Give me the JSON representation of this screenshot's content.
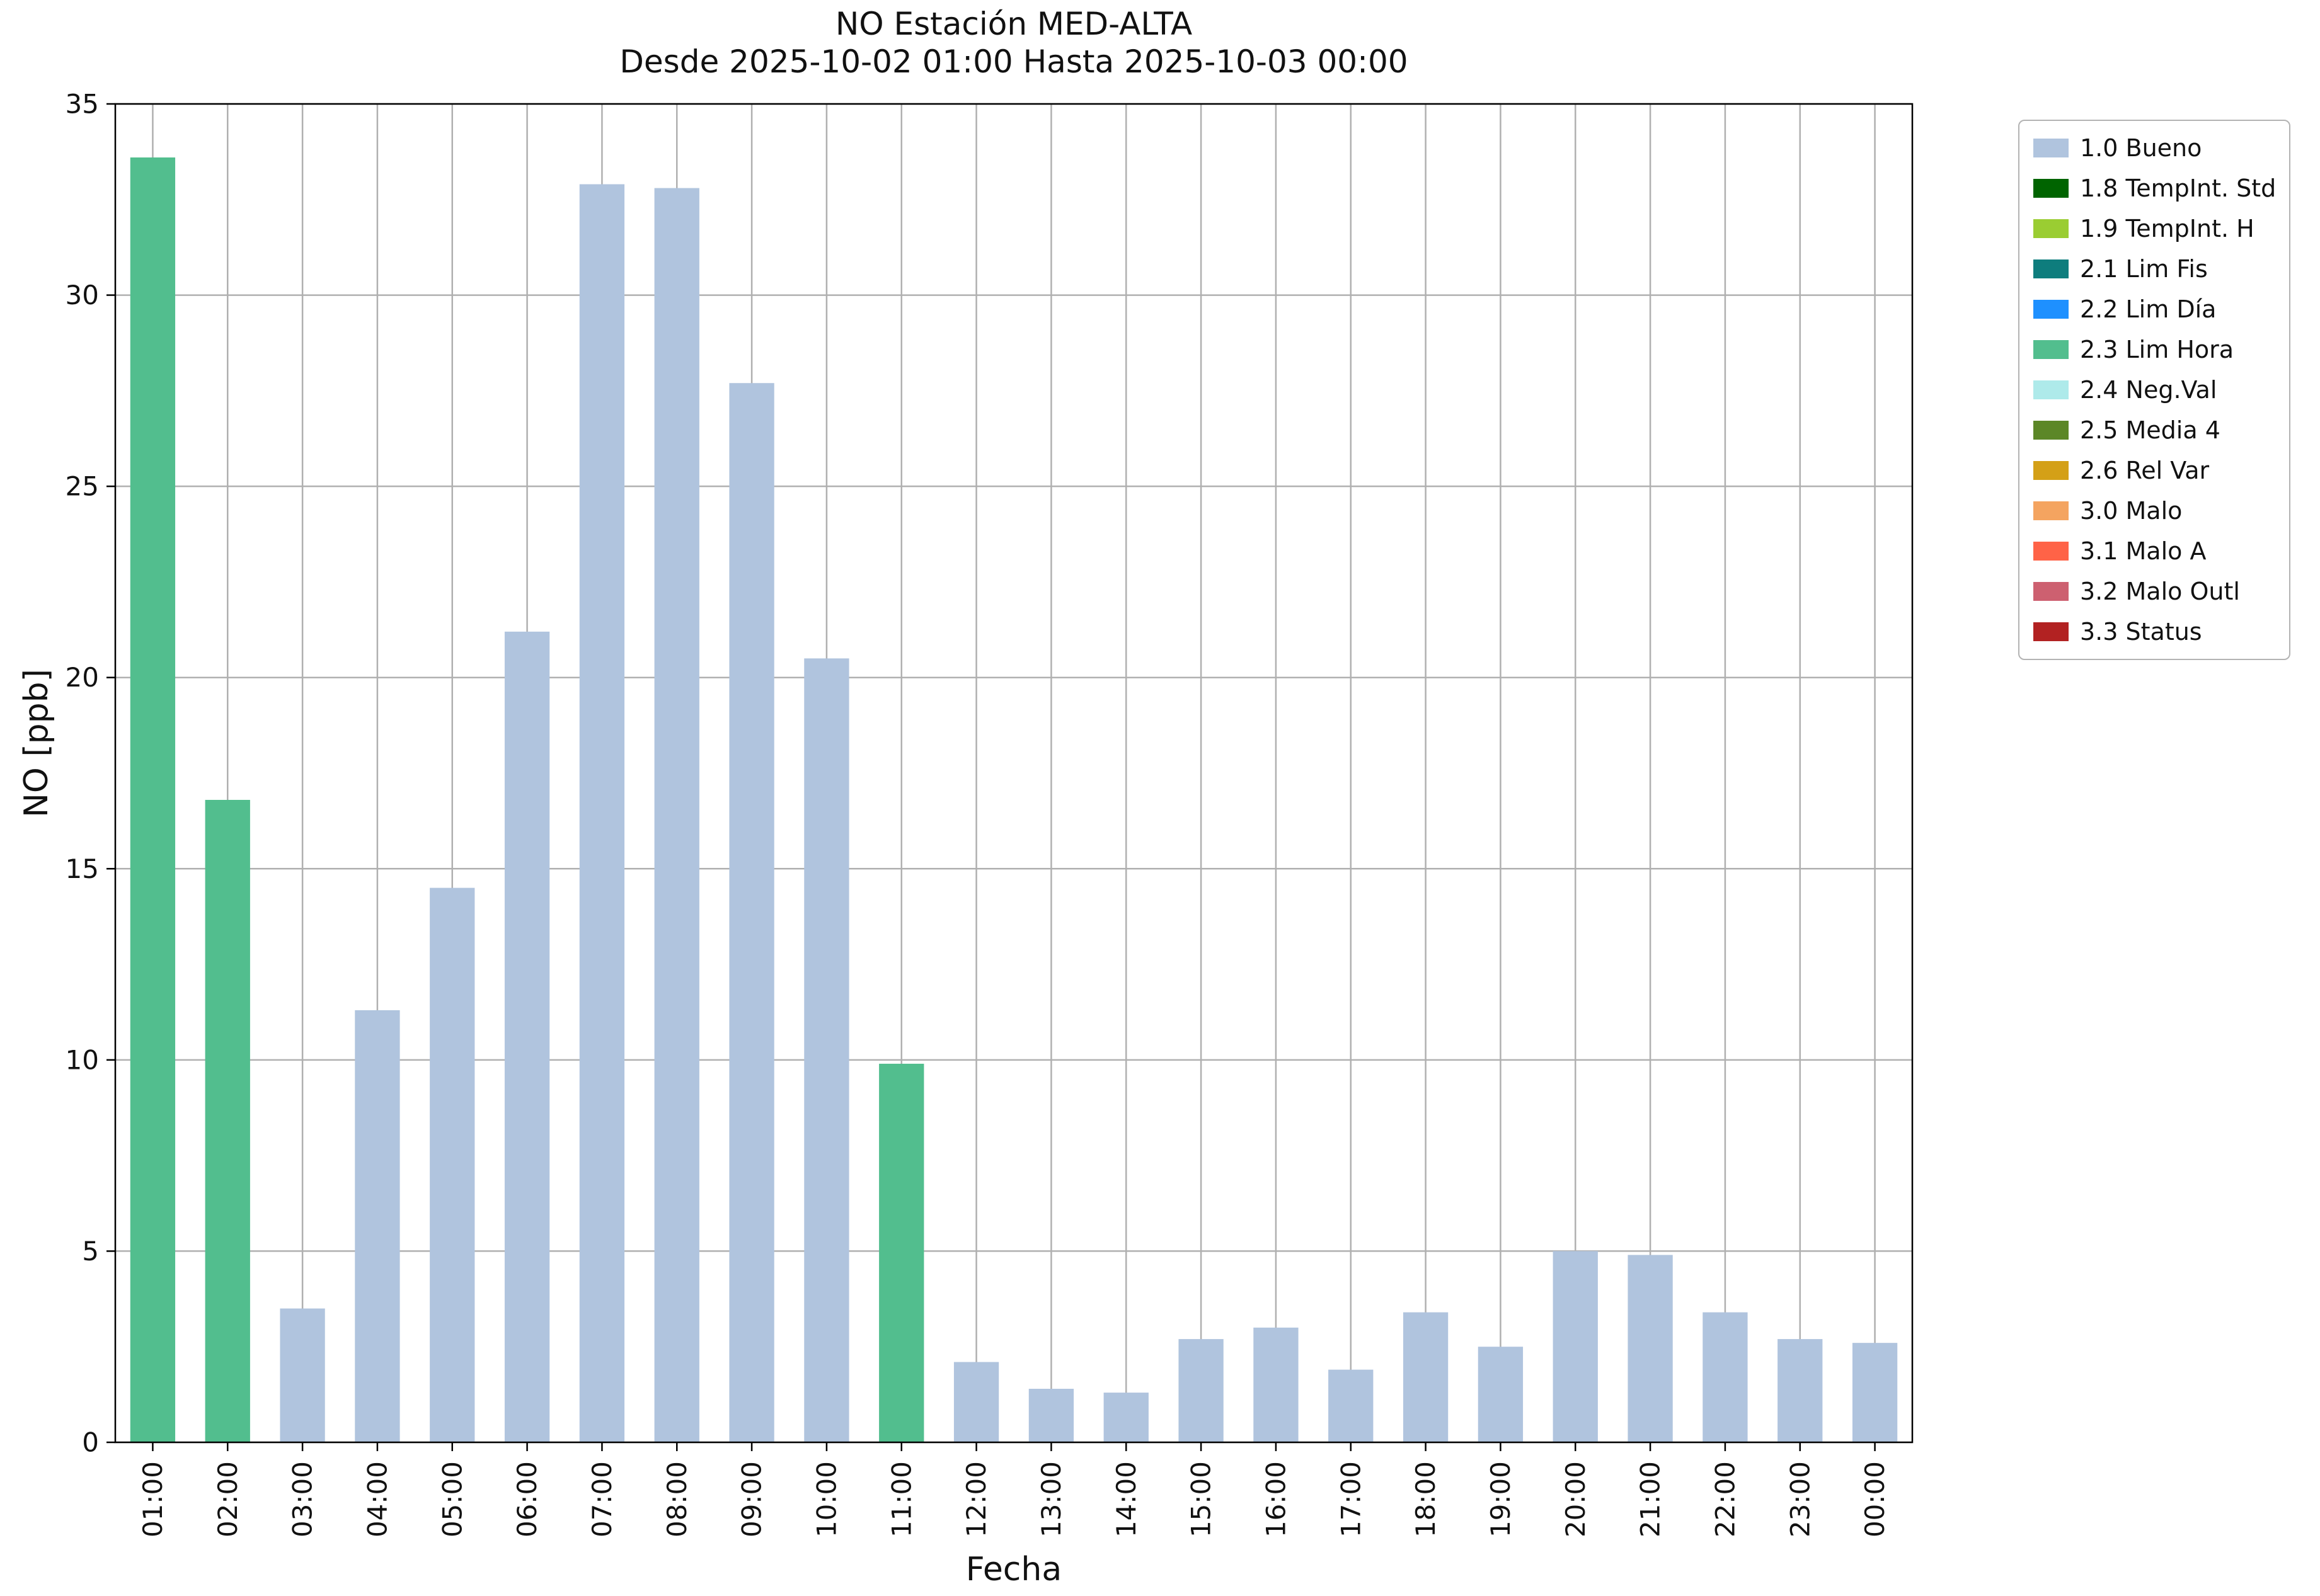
{
  "chart_data": {
    "type": "bar",
    "title": "NO Estación MED-ALTA",
    "subtitle": "Desde 2025-10-02 01:00 Hasta 2025-10-03 00:00",
    "xlabel": "Fecha",
    "ylabel": "NO [ppb]",
    "ylim": [
      0,
      35
    ],
    "yticks": [
      0,
      5,
      10,
      15,
      20,
      25,
      30,
      35
    ],
    "grid": true,
    "legend_position": "outside-right-top",
    "categories": [
      "01:00",
      "02:00",
      "03:00",
      "04:00",
      "05:00",
      "06:00",
      "07:00",
      "08:00",
      "09:00",
      "10:00",
      "11:00",
      "12:00",
      "13:00",
      "14:00",
      "15:00",
      "16:00",
      "17:00",
      "18:00",
      "19:00",
      "20:00",
      "21:00",
      "22:00",
      "23:00",
      "00:00"
    ],
    "values": [
      33.6,
      16.8,
      3.5,
      11.3,
      14.5,
      21.2,
      32.9,
      32.8,
      27.7,
      20.5,
      9.9,
      2.1,
      1.4,
      1.3,
      2.7,
      3.0,
      1.9,
      3.4,
      2.5,
      5.0,
      4.9,
      3.4,
      2.7,
      2.6
    ],
    "bar_flags": [
      "2.3 Lim Hora",
      "2.3 Lim Hora",
      "1.0 Bueno",
      "1.0 Bueno",
      "1.0 Bueno",
      "1.0 Bueno",
      "1.0 Bueno",
      "1.0 Bueno",
      "1.0 Bueno",
      "1.0 Bueno",
      "2.3 Lim Hora",
      "1.0 Bueno",
      "1.0 Bueno",
      "1.0 Bueno",
      "1.0 Bueno",
      "1.0 Bueno",
      "1.0 Bueno",
      "1.0 Bueno",
      "1.0 Bueno",
      "1.0 Bueno",
      "1.0 Bueno",
      "1.0 Bueno",
      "1.0 Bueno",
      "1.0 Bueno"
    ],
    "legend": [
      {
        "label": "1.0 Bueno",
        "color": "#b0c4de"
      },
      {
        "label": "1.8 TempInt. Std",
        "color": "#006400"
      },
      {
        "label": "1.9 TempInt. H",
        "color": "#9acd32"
      },
      {
        "label": "2.1 Lim Fis",
        "color": "#0e7d7d"
      },
      {
        "label": "2.2 Lim Día",
        "color": "#1e90ff"
      },
      {
        "label": "2.3 Lim Hora",
        "color": "#52be8e"
      },
      {
        "label": "2.4 Neg.Val",
        "color": "#aeeaea"
      },
      {
        "label": "2.5 Media 4",
        "color": "#5c8727"
      },
      {
        "label": "2.6 Rel Var",
        "color": "#d4a017"
      },
      {
        "label": "3.0 Malo",
        "color": "#f4a460"
      },
      {
        "label": "3.1 Malo A",
        "color": "#ff6347"
      },
      {
        "label": "3.2 Malo Outl",
        "color": "#cd6070"
      },
      {
        "label": "3.3 Status",
        "color": "#b22222"
      }
    ],
    "colors": {
      "grid": "#b0b0b0",
      "spine": "#000000",
      "text": "#111111"
    }
  }
}
